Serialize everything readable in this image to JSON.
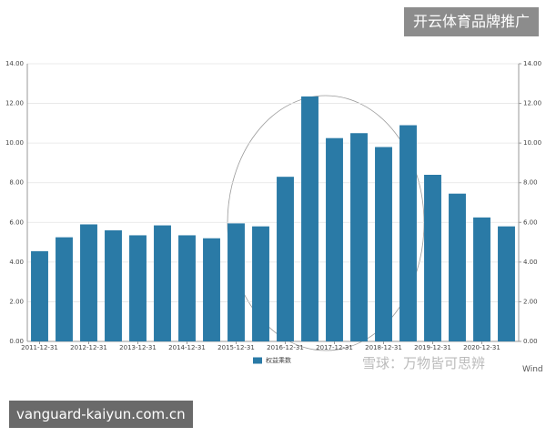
{
  "chart_data": {
    "type": "bar",
    "categories": [
      "2011-12-31",
      null,
      "2012-12-31",
      null,
      "2013-12-31",
      null,
      "2014-12-31",
      null,
      "2015-12-31",
      null,
      "2016-12-31",
      null,
      "2017-12-31",
      null,
      "2018-12-31",
      null,
      "2019-12-31",
      null,
      "2020-12-31",
      null
    ],
    "series": [
      {
        "name": "权益乘数",
        "color": "#2a7aa6",
        "values": [
          4.55,
          5.25,
          5.9,
          5.6,
          5.35,
          5.85,
          5.35,
          5.2,
          5.95,
          5.8,
          8.3,
          12.35,
          10.25,
          10.5,
          9.8,
          10.9,
          8.4,
          7.45,
          6.25,
          5.8
        ]
      }
    ],
    "ylim": [
      0,
      14
    ],
    "yticks": [
      {
        "value": 0,
        "label": "0.00"
      },
      {
        "value": 2,
        "label": "2.00"
      },
      {
        "value": 4,
        "label": "4.00"
      },
      {
        "value": 6,
        "label": "6.00"
      },
      {
        "value": 8,
        "label": "8.00"
      },
      {
        "value": 10,
        "label": "10.00"
      },
      {
        "value": 12,
        "label": "12.00"
      },
      {
        "value": 14,
        "label": "14.00"
      }
    ],
    "y2lim": [
      0,
      14
    ],
    "y2ticks": [
      {
        "value": 0,
        "label": "0.00"
      },
      {
        "value": 2,
        "label": "2.00"
      },
      {
        "value": 4,
        "label": "4.00"
      },
      {
        "value": 6,
        "label": "6.00"
      },
      {
        "value": 8,
        "label": "8.00"
      },
      {
        "value": 10,
        "label": "10.00"
      },
      {
        "value": 12,
        "label": "12.00"
      },
      {
        "value": 14,
        "label": "14.00"
      }
    ],
    "grid": true,
    "legend": "bottom"
  },
  "watermarks": {
    "top": "开云体育品牌推广",
    "bottom": "vanguard-kaiyun.com.cn",
    "xueqiu": "雪球：万物皆可思辨",
    "source": "Wind"
  }
}
